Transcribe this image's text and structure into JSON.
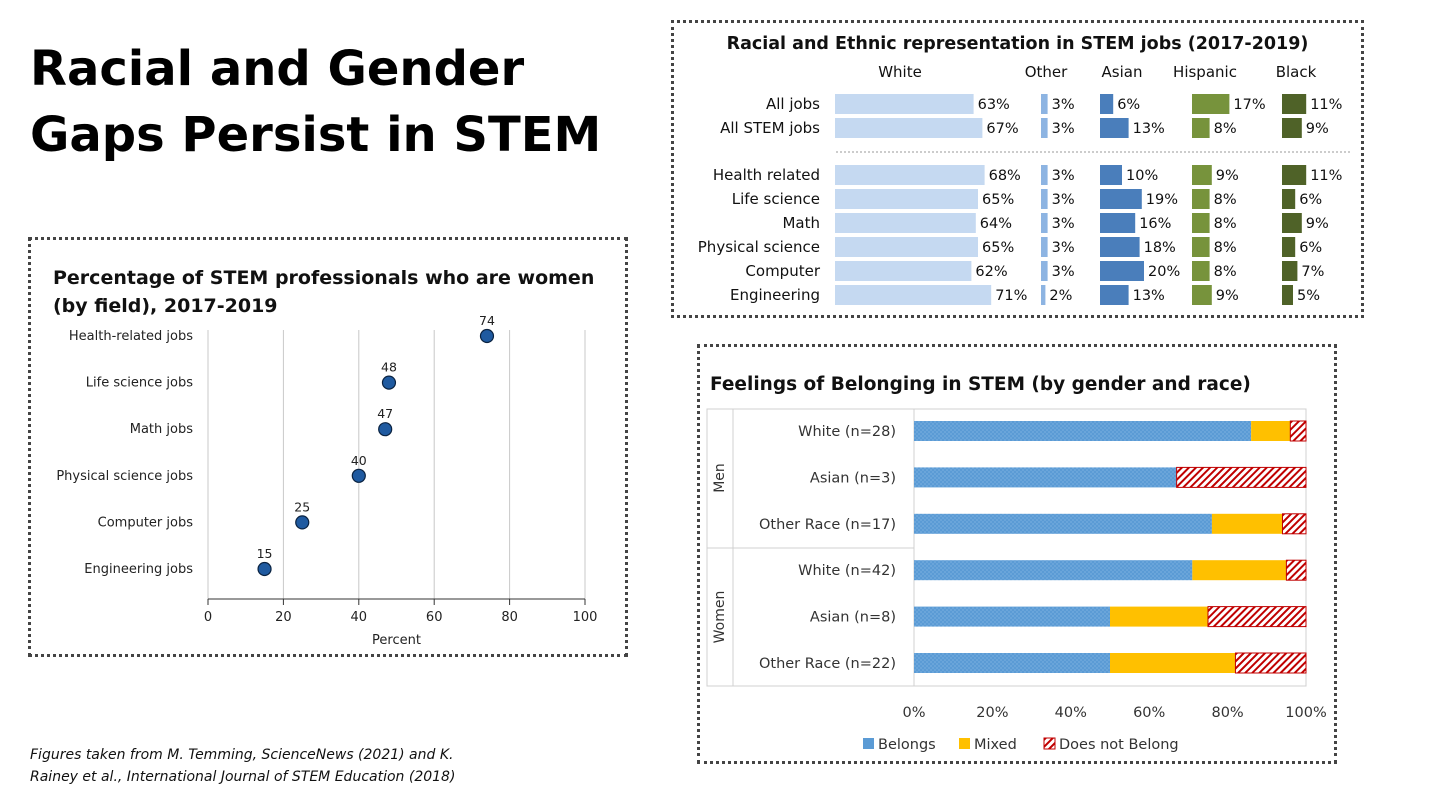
{
  "slide": {
    "title_line1": "Racial and Gender",
    "title_line2": "Gaps Persist in STEM",
    "footnote_line1": "Figures taken from M. Temming, ScienceNews (2021) and K.",
    "footnote_line2": "Rainey et al., International Journal of STEM Education (2018)"
  },
  "chart_data": [
    {
      "id": "women-by-field",
      "type": "scatter",
      "title_line1": "Percentage of STEM professionals who are women",
      "title_line2": "(by field), 2017-2019",
      "categories": [
        "Health-related jobs",
        "Life  science jobs",
        "Math jobs",
        "Physical science jobs",
        "Computer jobs",
        "Engineering jobs"
      ],
      "values": [
        74,
        48,
        47,
        40,
        25,
        15
      ],
      "xlabel": "Percent",
      "xlim": [
        0,
        100
      ],
      "xticks": [
        0,
        20,
        40,
        60,
        80,
        100
      ],
      "grid": true,
      "colors": {
        "point": "#1f5aa0",
        "point_edge": "#0a2240",
        "grid": "#c8c8c8"
      }
    },
    {
      "id": "race-representation",
      "type": "bar",
      "title": "Racial and Ethnic representation in STEM jobs (2017-2019)",
      "groups": [
        "White",
        "Other",
        "Asian",
        "Hispanic",
        "Black"
      ],
      "group_colors": [
        "#c5d9f1",
        "#8db4e2",
        "#4a7ebb",
        "#77933c",
        "#4f6228"
      ],
      "categories": [
        "All jobs",
        "All STEM jobs",
        "Health related",
        "Life science",
        "Math",
        "Physical science",
        "Computer",
        "Engineering"
      ],
      "values": [
        [
          63,
          3,
          6,
          17,
          11
        ],
        [
          67,
          3,
          13,
          8,
          9
        ],
        [
          68,
          3,
          10,
          9,
          11
        ],
        [
          65,
          3,
          19,
          8,
          6
        ],
        [
          64,
          3,
          16,
          8,
          9
        ],
        [
          65,
          3,
          18,
          8,
          6
        ],
        [
          62,
          3,
          20,
          8,
          7
        ],
        [
          71,
          2,
          13,
          9,
          5
        ]
      ],
      "labels": [
        [
          "63%",
          "3%",
          "6%",
          "17%",
          "11%"
        ],
        [
          "67%",
          "3%",
          "13%",
          "8%",
          "9%"
        ],
        [
          "68%",
          "3%",
          "10%",
          "9%",
          "11%"
        ],
        [
          "65%",
          "3%",
          "19%",
          "8%",
          "6%"
        ],
        [
          "64%",
          "3%",
          "16%",
          "8%",
          "9%"
        ],
        [
          "65%",
          "3%",
          "18%",
          "8%",
          "6%"
        ],
        [
          "62%",
          "3%",
          "20%",
          "8%",
          "7%"
        ],
        [
          "71%",
          "2%",
          "13%",
          "9%",
          "5%"
        ]
      ]
    },
    {
      "id": "belonging",
      "type": "bar",
      "orientation": "horizontal-stacked-100",
      "title": "Feelings of Belonging in STEM (by gender and race)",
      "group_labels": [
        "Men",
        "Women"
      ],
      "categories": [
        "White (n=28)",
        "Asian (n=3)",
        "Other Race (n=17)",
        "White (n=42)",
        "Asian (n=8)",
        "Other Race (n=22)"
      ],
      "category_groups": [
        "Men",
        "Men",
        "Men",
        "Women",
        "Women",
        "Women"
      ],
      "series": [
        {
          "name": "Belongs",
          "values": [
            86,
            67,
            76,
            71,
            50,
            50
          ],
          "color": "#5b9bd5"
        },
        {
          "name": "Mixed",
          "values": [
            10,
            0,
            18,
            24,
            25,
            32
          ],
          "color": "#ffc000"
        },
        {
          "name": "Does not Belong",
          "values": [
            4,
            33,
            6,
            5,
            25,
            18
          ],
          "color": "#c00000"
        }
      ],
      "xlim": [
        0,
        100
      ],
      "xticks": [
        "0%",
        "20%",
        "40%",
        "60%",
        "80%",
        "100%"
      ]
    }
  ]
}
